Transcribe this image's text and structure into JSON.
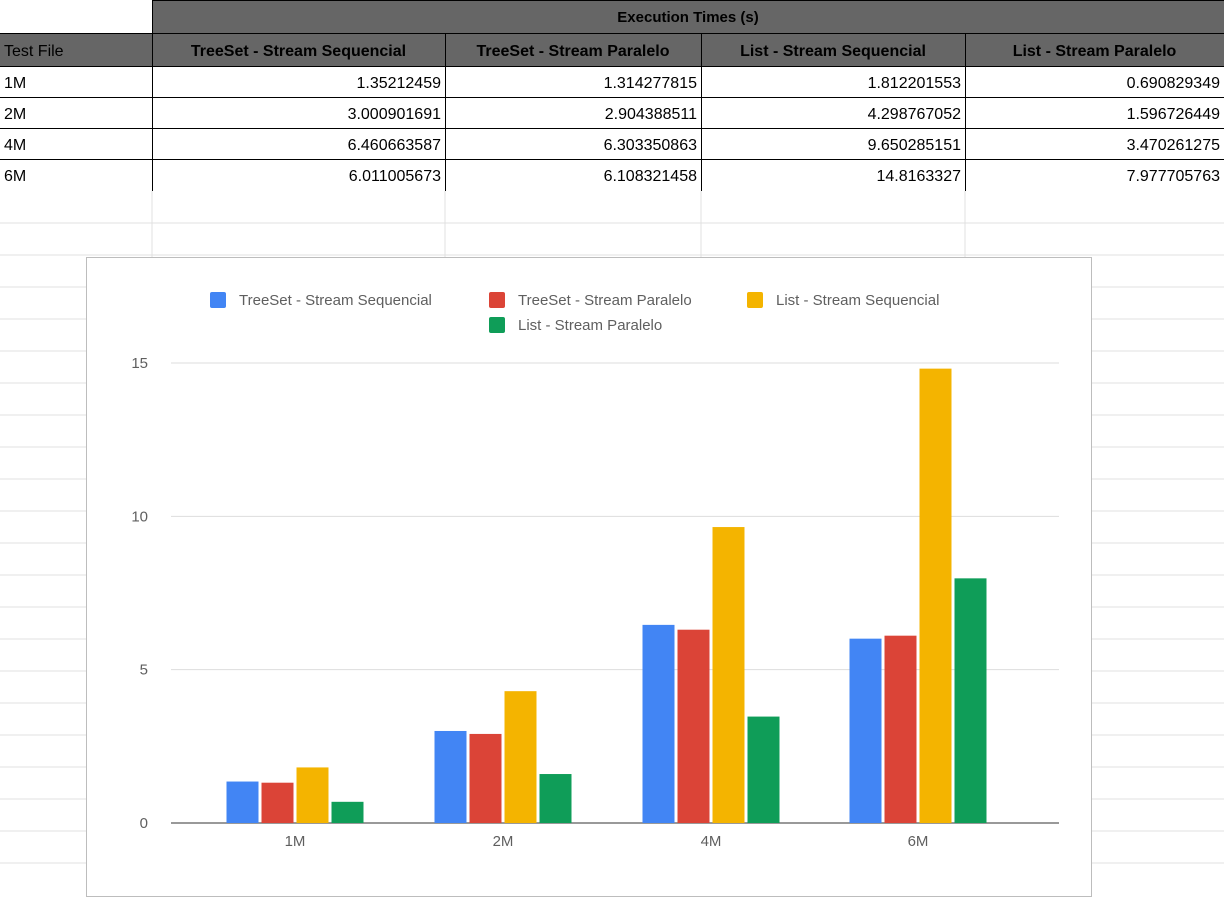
{
  "table": {
    "group_header": "Execution Times (s)",
    "columns": [
      "Test File",
      "TreeSet - Stream Sequencial",
      "TreeSet - Stream Paralelo",
      "List - Stream Sequencial",
      "List - Stream Paralelo"
    ],
    "rows": [
      [
        "1M",
        "1.35212459",
        "1.314277815",
        "1.812201553",
        "0.690829349"
      ],
      [
        "2M",
        "3.000901691",
        "2.904388511",
        "4.298767052",
        "1.596726449"
      ],
      [
        "4M",
        "6.460663587",
        "6.303350863",
        "9.650285151",
        "3.470261275"
      ],
      [
        "6M",
        "6.011005673",
        "6.108321458",
        "14.8163327",
        "7.977705763"
      ]
    ]
  },
  "colors": {
    "header_bg": "#666666",
    "grid": "#e0e0e0",
    "border": "#000000"
  },
  "chart_data": {
    "type": "bar",
    "title": "",
    "xlabel": "",
    "ylabel": "",
    "categories": [
      "1M",
      "2M",
      "4M",
      "6M"
    ],
    "series": [
      {
        "name": "TreeSet - Stream Sequencial",
        "color": "#4285f4",
        "values": [
          1.35212459,
          3.000901691,
          6.460663587,
          6.011005673
        ]
      },
      {
        "name": "TreeSet - Stream Paralelo",
        "color": "#db4437",
        "values": [
          1.314277815,
          2.904388511,
          6.303350863,
          6.108321458
        ]
      },
      {
        "name": "List - Stream Sequencial",
        "color": "#f4b400",
        "values": [
          1.812201553,
          4.298767052,
          9.650285151,
          14.8163327
        ]
      },
      {
        "name": "List - Stream Paralelo",
        "color": "#0f9d58",
        "values": [
          0.690829349,
          1.596726449,
          3.470261275,
          7.977705763
        ]
      }
    ],
    "ylim": [
      0,
      15
    ],
    "yticks": [
      "0",
      "5",
      "10",
      "15"
    ],
    "grid": true,
    "legend_position": "top"
  }
}
